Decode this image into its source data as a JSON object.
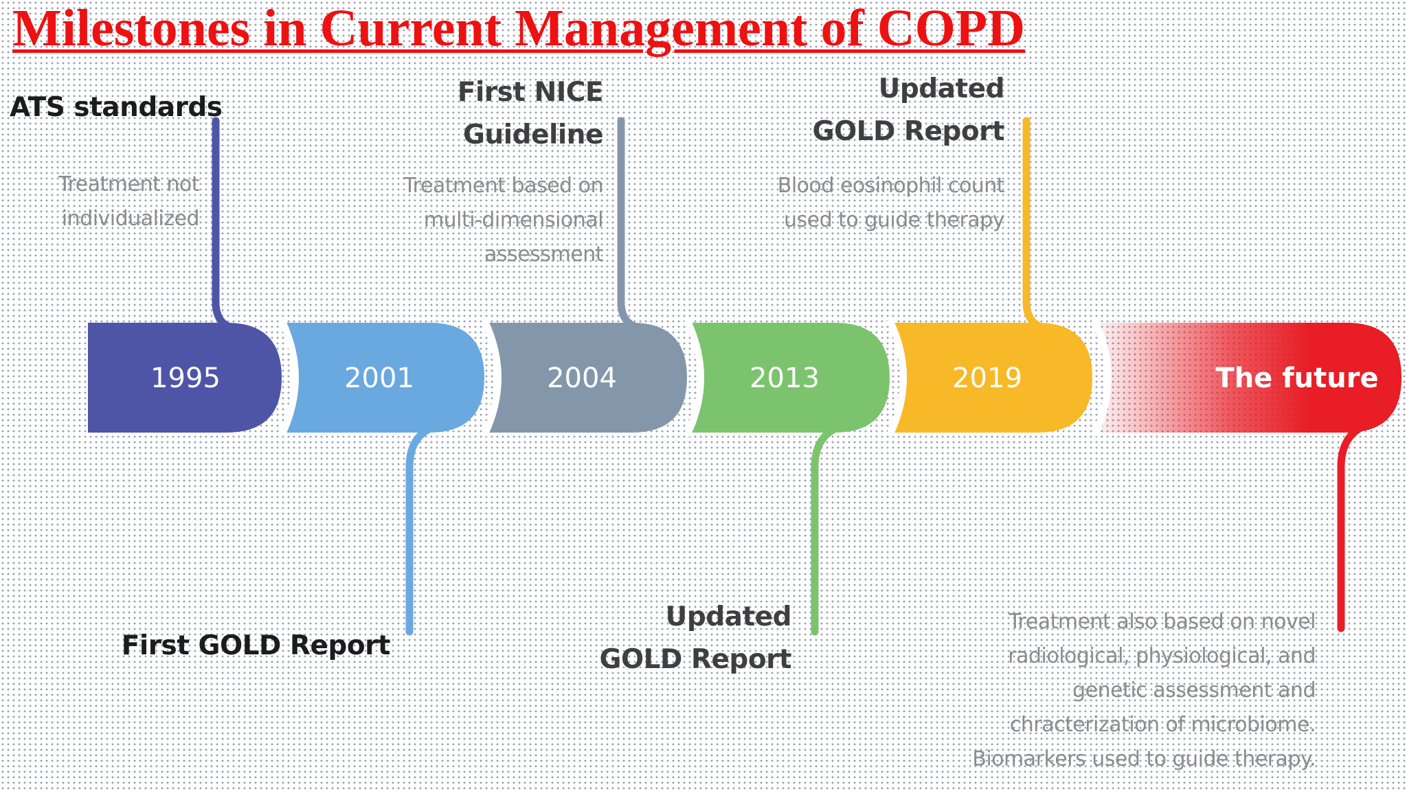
{
  "title": "Milestones in Current Management of COPD",
  "colors": {
    "title": "#ee1111",
    "seg_1995": "#4f55a6",
    "seg_2001": "#6aa8e0",
    "seg_2004": "#8497aa",
    "seg_2013": "#7cc36e",
    "seg_2019": "#f7b928",
    "seg_future": "#e81d25"
  },
  "timeline": [
    {
      "year": "1995",
      "label": "ATS standards",
      "description": [
        "Treatment not",
        "individualized"
      ]
    },
    {
      "year": "2001",
      "label": "First GOLD Report"
    },
    {
      "year": "2004",
      "label": [
        "First NICE",
        "Guideline"
      ],
      "description": [
        "Treatment based on",
        "multi-dimensional",
        "assessment"
      ]
    },
    {
      "year": "2013",
      "label": [
        "Updated",
        "GOLD Report"
      ]
    },
    {
      "year": "2019",
      "label": [
        "Updated",
        "GOLD Report"
      ],
      "description": [
        "Blood eosinophil count",
        "used to guide therapy"
      ]
    },
    {
      "year": "The future",
      "description": [
        "Treatment also based on novel",
        "radiological, physiological,  and",
        "genetic assessment and",
        "chracterization of microbiome.",
        "Biomarkers used to guide therapy."
      ]
    }
  ]
}
